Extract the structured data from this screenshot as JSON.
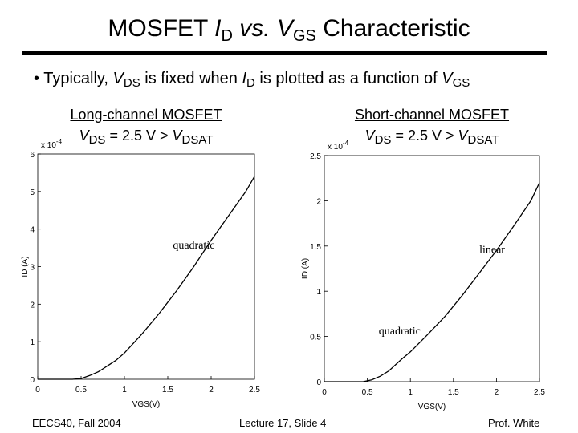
{
  "title": {
    "prefix": "MOSFET ",
    "i": "I",
    "i_sub": "D",
    "mid": " vs. ",
    "v": "V",
    "v_sub": "GS",
    "suffix": " Characteristic"
  },
  "bullet": {
    "marker": "•",
    "lead": "Typically, ",
    "v": "V",
    "v_sub": "DS",
    "mid": " is fixed when ",
    "i": "I",
    "i_sub": "D",
    "tail": " is plotted as a function of ",
    "v2": "V",
    "v2_sub": "GS"
  },
  "panels": [
    {
      "heading": "Long-channel MOSFET",
      "cond_v": "V",
      "cond_sub": "DS",
      "cond_mid": " = 2.5 V > ",
      "cond_v2": "V",
      "cond_sub2": "DSAT"
    },
    {
      "heading": "Short-channel MOSFET",
      "cond_v": "V",
      "cond_sub": "DS",
      "cond_mid": " = 2.5 V > ",
      "cond_v2": "V",
      "cond_sub2": "DSAT"
    }
  ],
  "chart_data": [
    {
      "type": "line",
      "title": "Long-channel MOSFET",
      "xlabel": "VGS(V)",
      "ylabel": "ID (A)",
      "y_multiplier": "x 10^-4",
      "xlim": [
        0,
        2.5
      ],
      "ylim": [
        0,
        6
      ],
      "x_ticks": [
        "0",
        "0.5",
        "1",
        "1.5",
        "2",
        "2.5"
      ],
      "y_ticks": [
        "0",
        "1",
        "2",
        "3",
        "4",
        "5",
        "6"
      ],
      "annotation": "quadratic",
      "series": [
        {
          "name": "ID",
          "x": [
            0,
            0.4,
            0.5,
            0.6,
            0.7,
            0.8,
            0.9,
            1.0,
            1.2,
            1.4,
            1.6,
            1.8,
            2.0,
            2.2,
            2.4,
            2.5
          ],
          "y": [
            0,
            0,
            0.02,
            0.1,
            0.2,
            0.35,
            0.5,
            0.7,
            1.2,
            1.75,
            2.35,
            3.0,
            3.7,
            4.35,
            5.0,
            5.4
          ]
        }
      ]
    },
    {
      "type": "line",
      "title": "Short-channel MOSFET",
      "xlabel": "VGS(V)",
      "ylabel": "ID (A)",
      "y_multiplier": "x 10^-4",
      "xlim": [
        0,
        2.5
      ],
      "ylim": [
        0,
        2.5
      ],
      "x_ticks": [
        "0",
        "0.5",
        "1",
        "1.5",
        "2",
        "2.5"
      ],
      "y_ticks": [
        "0",
        "0.5",
        "1",
        "1.5",
        "2",
        "2.5"
      ],
      "annotations": [
        "linear",
        "quadratic"
      ],
      "series": [
        {
          "name": "ID",
          "x": [
            0,
            0.45,
            0.55,
            0.65,
            0.75,
            0.9,
            1.0,
            1.2,
            1.4,
            1.6,
            1.8,
            2.0,
            2.2,
            2.4,
            2.5
          ],
          "y": [
            0,
            0,
            0.02,
            0.06,
            0.12,
            0.25,
            0.33,
            0.52,
            0.72,
            0.95,
            1.2,
            1.45,
            1.72,
            2.0,
            2.2
          ]
        }
      ]
    }
  ],
  "footer": {
    "left": "EECS40, Fall 2004",
    "center": "Lecture 17, Slide 4",
    "right": "Prof. White"
  }
}
